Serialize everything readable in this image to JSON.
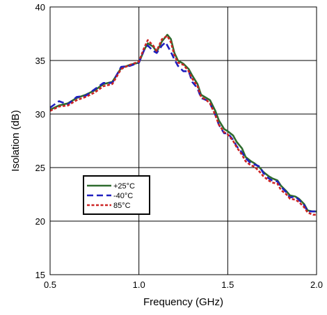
{
  "chart_data": {
    "type": "line",
    "title": "",
    "xlabel": "Frequency (GHz)",
    "ylabel": "Isolation (dB)",
    "xlim": [
      0.5,
      2.0
    ],
    "ylim": [
      15,
      40
    ],
    "x_ticks": [
      "0.5",
      "1.0",
      "1.5",
      "2.0"
    ],
    "y_ticks": [
      "15",
      "20",
      "25",
      "30",
      "35",
      "40"
    ],
    "grid": true,
    "legend_position": "lower-left",
    "series": [
      {
        "name": "+25°C",
        "color": "#2e6b2e",
        "style": "solid",
        "x": [
          0.5,
          0.55,
          0.6,
          0.65,
          0.7,
          0.75,
          0.8,
          0.85,
          0.9,
          0.95,
          1.0,
          1.03,
          1.05,
          1.08,
          1.1,
          1.13,
          1.16,
          1.18,
          1.2,
          1.22,
          1.25,
          1.28,
          1.3,
          1.33,
          1.35,
          1.38,
          1.4,
          1.43,
          1.45,
          1.48,
          1.5,
          1.53,
          1.55,
          1.58,
          1.6,
          1.63,
          1.65,
          1.68,
          1.7,
          1.73,
          1.75,
          1.78,
          1.8,
          1.83,
          1.85,
          1.88,
          1.9,
          1.93,
          1.95,
          1.98,
          2.0
        ],
        "y": [
          30.4,
          30.8,
          31.0,
          31.5,
          31.8,
          32.2,
          32.8,
          33.0,
          34.3,
          34.6,
          34.8,
          36.0,
          36.6,
          36.3,
          35.8,
          36.8,
          37.4,
          37.0,
          35.7,
          35.0,
          34.7,
          34.2,
          33.6,
          32.8,
          31.8,
          31.5,
          31.3,
          30.3,
          29.4,
          28.6,
          28.4,
          28.0,
          27.4,
          26.8,
          26.0,
          25.6,
          25.4,
          25.0,
          24.6,
          24.2,
          24.0,
          23.8,
          23.3,
          22.8,
          22.4,
          22.3,
          22.1,
          21.6,
          21.0,
          20.9,
          20.9
        ]
      },
      {
        "name": "-40°C",
        "color": "#1f1fbf",
        "style": "dashed",
        "x": [
          0.5,
          0.55,
          0.6,
          0.65,
          0.7,
          0.75,
          0.8,
          0.85,
          0.9,
          0.95,
          1.0,
          1.03,
          1.05,
          1.08,
          1.1,
          1.13,
          1.15,
          1.18,
          1.2,
          1.22,
          1.25,
          1.28,
          1.3,
          1.33,
          1.35,
          1.38,
          1.4,
          1.43,
          1.45,
          1.48,
          1.5,
          1.53,
          1.55,
          1.58,
          1.6,
          1.63,
          1.65,
          1.68,
          1.7,
          1.73,
          1.75,
          1.78,
          1.8,
          1.83,
          1.85,
          1.88,
          1.9,
          1.93,
          1.95,
          1.98,
          2.0
        ],
        "y": [
          30.6,
          31.2,
          30.9,
          31.6,
          31.7,
          32.3,
          32.9,
          32.9,
          34.4,
          34.5,
          34.8,
          36.0,
          36.4,
          35.9,
          35.7,
          36.4,
          36.7,
          35.8,
          35.1,
          34.5,
          34.0,
          34.0,
          33.0,
          32.4,
          31.5,
          31.3,
          31.0,
          29.9,
          29.0,
          28.2,
          28.2,
          27.6,
          27.0,
          26.4,
          25.9,
          25.4,
          25.3,
          25.1,
          24.5,
          24.0,
          23.8,
          23.7,
          23.2,
          22.7,
          22.2,
          22.3,
          22.0,
          21.5,
          20.9,
          20.9,
          20.9
        ]
      },
      {
        "name": "85°C",
        "color": "#cc2222",
        "style": "dotted",
        "x": [
          0.5,
          0.55,
          0.6,
          0.65,
          0.7,
          0.75,
          0.8,
          0.85,
          0.9,
          0.95,
          1.0,
          1.03,
          1.05,
          1.08,
          1.1,
          1.13,
          1.16,
          1.18,
          1.2,
          1.22,
          1.25,
          1.28,
          1.3,
          1.33,
          1.35,
          1.38,
          1.4,
          1.43,
          1.45,
          1.48,
          1.5,
          1.53,
          1.55,
          1.58,
          1.6,
          1.63,
          1.65,
          1.68,
          1.7,
          1.73,
          1.75,
          1.78,
          1.8,
          1.83,
          1.85,
          1.88,
          1.9,
          1.93,
          1.95,
          1.98,
          2.0
        ],
        "y": [
          30.3,
          30.7,
          30.8,
          31.3,
          31.6,
          32.0,
          32.6,
          32.8,
          34.2,
          34.6,
          34.9,
          36.2,
          36.9,
          36.4,
          35.9,
          37.0,
          37.3,
          36.7,
          35.5,
          34.8,
          34.6,
          34.0,
          33.3,
          32.6,
          31.6,
          31.3,
          31.0,
          29.9,
          29.0,
          28.3,
          28.1,
          27.5,
          26.9,
          26.2,
          25.6,
          25.2,
          25.1,
          24.6,
          24.2,
          23.8,
          23.6,
          23.5,
          22.9,
          22.5,
          22.1,
          22.0,
          21.8,
          21.3,
          20.8,
          20.6,
          20.6
        ]
      }
    ]
  }
}
